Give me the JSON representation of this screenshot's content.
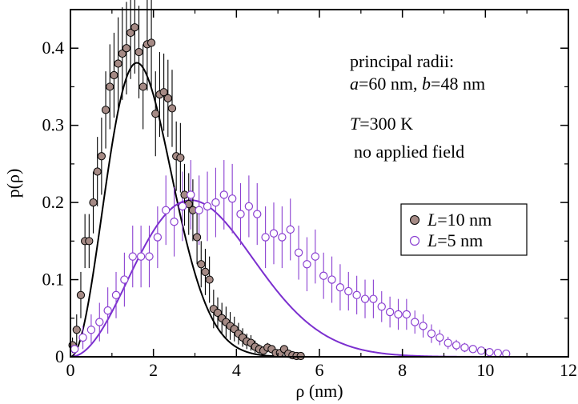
{
  "chart_data": {
    "type": "scatter",
    "xlabel": "ρ (nm)",
    "ylabel": "p(ρ)",
    "xlim": [
      0,
      12
    ],
    "ylim": [
      0,
      0.45
    ],
    "xticks": [
      0,
      2,
      4,
      6,
      8,
      10,
      12
    ],
    "yticks": [
      0,
      0.1,
      0.2,
      0.3,
      0.4
    ],
    "xtick_labels": [
      "0",
      "2",
      "4",
      "6",
      "8",
      "10",
      "12"
    ],
    "ytick_labels": [
      "0",
      "0.1",
      "0.2",
      "0.3",
      "0.4"
    ],
    "grid": false,
    "legend_position": "right",
    "annotations": {
      "line1": "principal radii:",
      "line2_a": "a",
      "line2_b": "=60 nm, ",
      "line2_c": "b",
      "line2_d": "=48 nm",
      "line3_a": "T",
      "line3_b": "=300 K",
      "line4": "no applied field"
    },
    "series": [
      {
        "name_italic": "L",
        "name_rest": "=10 nm",
        "marker": "filled-circle",
        "color": "#a58a85",
        "line_color": "#000000",
        "x": [
          0.05,
          0.15,
          0.25,
          0.35,
          0.45,
          0.55,
          0.65,
          0.75,
          0.85,
          0.95,
          1.05,
          1.15,
          1.25,
          1.35,
          1.45,
          1.55,
          1.65,
          1.75,
          1.85,
          1.95,
          2.05,
          2.15,
          2.25,
          2.35,
          2.45,
          2.55,
          2.65,
          2.75,
          2.85,
          2.95,
          3.05,
          3.15,
          3.25,
          3.35,
          3.45,
          3.55,
          3.65,
          3.75,
          3.85,
          3.95,
          4.05,
          4.15,
          4.25,
          4.35,
          4.45,
          4.55,
          4.65,
          4.75,
          4.85,
          4.95,
          5.05,
          5.15,
          5.25,
          5.35,
          5.45,
          5.55
        ],
        "y": [
          0.015,
          0.035,
          0.08,
          0.15,
          0.15,
          0.2,
          0.24,
          0.26,
          0.32,
          0.35,
          0.365,
          0.38,
          0.393,
          0.4,
          0.42,
          0.427,
          0.395,
          0.35,
          0.405,
          0.407,
          0.315,
          0.34,
          0.343,
          0.335,
          0.322,
          0.26,
          0.258,
          0.21,
          0.198,
          0.19,
          0.155,
          0.12,
          0.11,
          0.1,
          0.062,
          0.057,
          0.05,
          0.045,
          0.04,
          0.036,
          0.03,
          0.025,
          0.02,
          0.018,
          0.013,
          0.01,
          0.008,
          0.012,
          0.01,
          0.005,
          0.005,
          0.01,
          0.004,
          0.002,
          0.001,
          0.001
        ],
        "err": [
          0.01,
          0.02,
          0.03,
          0.035,
          0.035,
          0.04,
          0.045,
          0.05,
          0.05,
          0.055,
          0.055,
          0.06,
          0.06,
          0.06,
          0.06,
          0.06,
          0.06,
          0.055,
          0.06,
          0.06,
          0.055,
          0.055,
          0.05,
          0.05,
          0.05,
          0.045,
          0.045,
          0.04,
          0.04,
          0.04,
          0.035,
          0.03,
          0.03,
          0.03,
          0.025,
          0.02,
          0.02,
          0.02,
          0.018,
          0.016,
          0.014,
          0.012,
          0.01,
          0.01,
          0.008,
          0.006,
          0.005,
          0.006,
          0.005,
          0.004,
          0.004,
          0.004,
          0.003,
          0.002,
          0.001,
          0.001
        ],
        "fit_peak": 1.6,
        "fit_max": 0.381
      },
      {
        "name_italic": "L",
        "name_rest": "=5 nm",
        "marker": "open-circle",
        "color": "#8a3fd1",
        "line_color": "#7b2fcf",
        "x": [
          0.1,
          0.3,
          0.5,
          0.7,
          0.9,
          1.1,
          1.3,
          1.5,
          1.7,
          1.9,
          2.1,
          2.3,
          2.5,
          2.7,
          2.9,
          3.1,
          3.3,
          3.5,
          3.7,
          3.9,
          4.1,
          4.3,
          4.5,
          4.7,
          4.9,
          5.1,
          5.3,
          5.5,
          5.7,
          5.9,
          6.1,
          6.3,
          6.5,
          6.7,
          6.9,
          7.1,
          7.3,
          7.5,
          7.7,
          7.9,
          8.1,
          8.3,
          8.5,
          8.7,
          8.9,
          9.1,
          9.3,
          9.5,
          9.7,
          9.9,
          10.1,
          10.3,
          10.5
        ],
        "y": [
          0.01,
          0.025,
          0.035,
          0.045,
          0.06,
          0.08,
          0.1,
          0.13,
          0.13,
          0.13,
          0.155,
          0.19,
          0.175,
          0.195,
          0.21,
          0.19,
          0.195,
          0.2,
          0.21,
          0.205,
          0.185,
          0.195,
          0.185,
          0.155,
          0.16,
          0.155,
          0.165,
          0.135,
          0.12,
          0.13,
          0.105,
          0.1,
          0.09,
          0.085,
          0.08,
          0.075,
          0.075,
          0.065,
          0.058,
          0.055,
          0.055,
          0.045,
          0.04,
          0.03,
          0.025,
          0.018,
          0.015,
          0.012,
          0.01,
          0.008,
          0.006,
          0.005,
          0.004
        ],
        "err": [
          0.008,
          0.015,
          0.02,
          0.025,
          0.03,
          0.03,
          0.035,
          0.04,
          0.04,
          0.04,
          0.04,
          0.045,
          0.045,
          0.045,
          0.045,
          0.045,
          0.045,
          0.045,
          0.045,
          0.045,
          0.04,
          0.04,
          0.04,
          0.04,
          0.04,
          0.04,
          0.04,
          0.035,
          0.035,
          0.035,
          0.03,
          0.03,
          0.03,
          0.025,
          0.025,
          0.025,
          0.025,
          0.02,
          0.02,
          0.02,
          0.02,
          0.015,
          0.015,
          0.012,
          0.01,
          0.008,
          0.007,
          0.006,
          0.005,
          0.004,
          0.003,
          0.003,
          0.002
        ],
        "fit_peak": 2.9,
        "fit_max": 0.203
      }
    ]
  }
}
